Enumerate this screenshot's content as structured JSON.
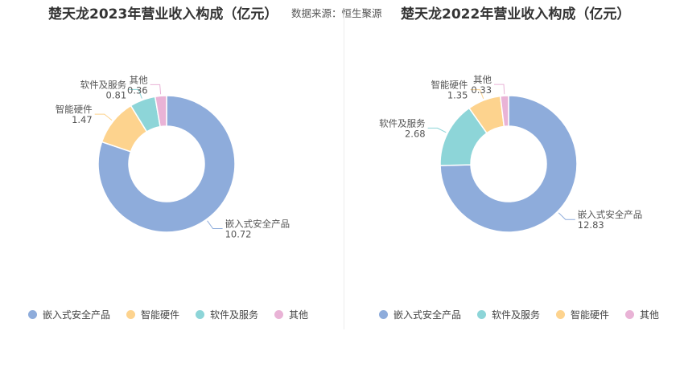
{
  "source_text": "数据来源：恒生聚源",
  "chart_data": [
    {
      "type": "pie",
      "title": "楚天龙2023年营业收入构成（亿元）",
      "slices": [
        {
          "name": "嵌入式安全产品",
          "value": 10.72,
          "color": "#8eacdb"
        },
        {
          "name": "智能硬件",
          "value": 1.47,
          "color": "#fdd38e"
        },
        {
          "name": "软件及服务",
          "value": 0.81,
          "color": "#8dd5d8"
        },
        {
          "name": "其他",
          "value": 0.36,
          "color": "#e9b3d6"
        }
      ],
      "legend": [
        {
          "name": "嵌入式安全产品",
          "color": "#8eacdb"
        },
        {
          "name": "智能硬件",
          "color": "#fdd38e"
        },
        {
          "name": "软件及服务",
          "color": "#8dd5d8"
        },
        {
          "name": "其他",
          "color": "#e9b3d6"
        }
      ],
      "legend_position": "bottom"
    },
    {
      "type": "pie",
      "title": "楚天龙2022年营业收入构成（亿元）",
      "slices": [
        {
          "name": "嵌入式安全产品",
          "value": 12.83,
          "color": "#8eacdb"
        },
        {
          "name": "软件及服务",
          "value": 2.68,
          "color": "#8dd5d8"
        },
        {
          "name": "智能硬件",
          "value": 1.35,
          "color": "#fdd38e"
        },
        {
          "name": "其他",
          "value": 0.33,
          "color": "#e9b3d6"
        }
      ],
      "legend": [
        {
          "name": "嵌入式安全产品",
          "color": "#8eacdb"
        },
        {
          "name": "软件及服务",
          "color": "#8dd5d8"
        },
        {
          "name": "智能硬件",
          "color": "#fdd38e"
        },
        {
          "name": "其他",
          "color": "#e9b3d6"
        }
      ],
      "legend_position": "bottom"
    }
  ]
}
